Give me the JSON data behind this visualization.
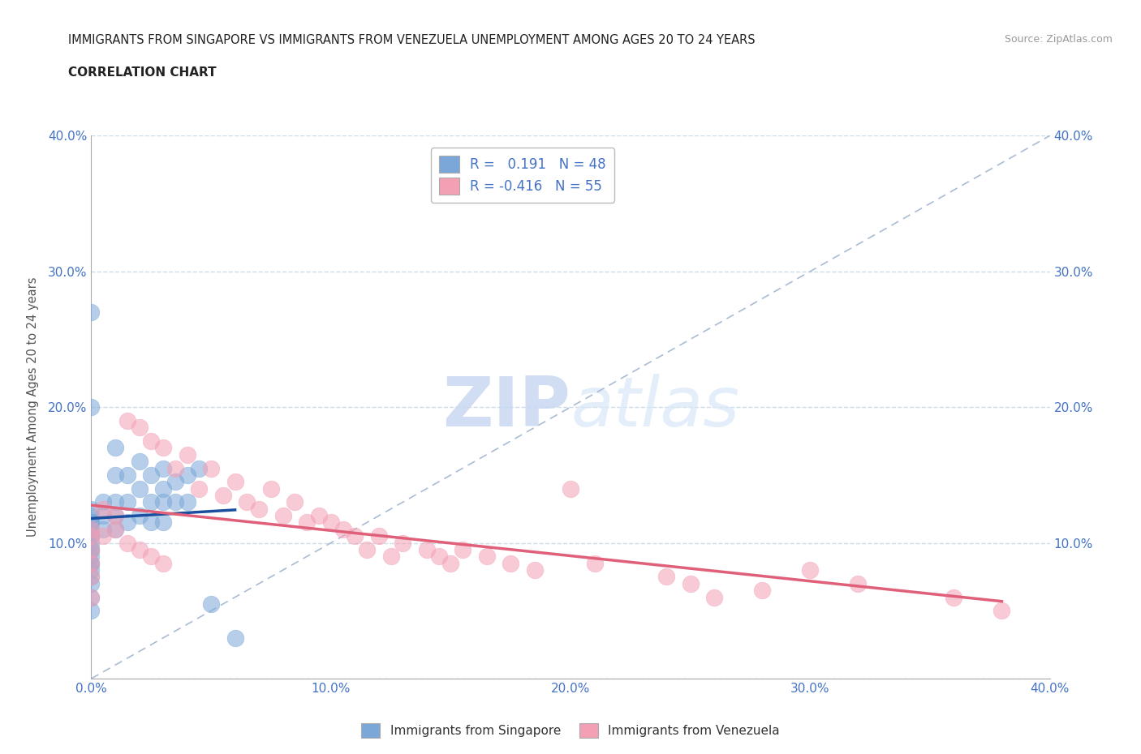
{
  "title_line1": "IMMIGRANTS FROM SINGAPORE VS IMMIGRANTS FROM VENEZUELA UNEMPLOYMENT AMONG AGES 20 TO 24 YEARS",
  "title_line2": "CORRELATION CHART",
  "source_text": "Source: ZipAtlas.com",
  "ylabel": "Unemployment Among Ages 20 to 24 years",
  "xlim": [
    0.0,
    0.4
  ],
  "ylim": [
    0.0,
    0.4
  ],
  "xtick_vals": [
    0.0,
    0.1,
    0.2,
    0.3,
    0.4
  ],
  "xtick_labels": [
    "0.0%",
    "10.0%",
    "20.0%",
    "30.0%",
    "40.0%"
  ],
  "ytick_vals": [
    0.0,
    0.1,
    0.2,
    0.3,
    0.4
  ],
  "ytick_labels": [
    "",
    "10.0%",
    "20.0%",
    "30.0%",
    "40.0%"
  ],
  "right_ytick_vals": [
    0.1,
    0.2,
    0.3,
    0.4
  ],
  "right_ytick_labels": [
    "10.0%",
    "20.0%",
    "30.0%",
    "40.0%"
  ],
  "singapore_color": "#7BA7D8",
  "singapore_edge": "#7BA7D8",
  "venezuela_color": "#F4A0B4",
  "venezuela_edge": "#F4A0B4",
  "singapore_line_color": "#1A4FA0",
  "venezuela_line_color": "#E0607A",
  "diag_color": "#AABBD4",
  "grid_color": "#CCDDE8",
  "singapore_R": 0.191,
  "singapore_N": 48,
  "venezuela_R": -0.416,
  "venezuela_N": 55,
  "legend_label_singapore": "Immigrants from Singapore",
  "legend_label_venezuela": "Immigrants from Venezuela",
  "watermark_zip": "ZIP",
  "watermark_atlas": "atlas",
  "tick_color": "#4472C4",
  "singapore_x": [
    0.0,
    0.0,
    0.0,
    0.0,
    0.0,
    0.0,
    0.0,
    0.0,
    0.0,
    0.0,
    0.0,
    0.0,
    0.0,
    0.0,
    0.0,
    0.0,
    0.0,
    0.0,
    0.0,
    0.0,
    0.005,
    0.005,
    0.005,
    0.01,
    0.01,
    0.01,
    0.01,
    0.01,
    0.015,
    0.015,
    0.015,
    0.02,
    0.02,
    0.02,
    0.025,
    0.025,
    0.025,
    0.03,
    0.03,
    0.03,
    0.03,
    0.035,
    0.035,
    0.04,
    0.04,
    0.045,
    0.05,
    0.06
  ],
  "singapore_y": [
    0.11,
    0.115,
    0.12,
    0.125,
    0.105,
    0.1,
    0.095,
    0.09,
    0.085,
    0.08,
    0.07,
    0.06,
    0.05,
    0.27,
    0.2,
    0.115,
    0.105,
    0.095,
    0.085,
    0.075,
    0.13,
    0.12,
    0.11,
    0.17,
    0.15,
    0.13,
    0.12,
    0.11,
    0.15,
    0.13,
    0.115,
    0.16,
    0.14,
    0.12,
    0.15,
    0.13,
    0.115,
    0.155,
    0.14,
    0.13,
    0.115,
    0.145,
    0.13,
    0.15,
    0.13,
    0.155,
    0.055,
    0.03
  ],
  "venezuela_x": [
    0.0,
    0.0,
    0.0,
    0.0,
    0.0,
    0.0,
    0.005,
    0.005,
    0.01,
    0.01,
    0.015,
    0.015,
    0.02,
    0.02,
    0.025,
    0.025,
    0.03,
    0.03,
    0.035,
    0.04,
    0.045,
    0.05,
    0.055,
    0.06,
    0.065,
    0.07,
    0.075,
    0.08,
    0.085,
    0.09,
    0.095,
    0.1,
    0.105,
    0.11,
    0.115,
    0.12,
    0.125,
    0.13,
    0.14,
    0.145,
    0.15,
    0.155,
    0.165,
    0.175,
    0.185,
    0.2,
    0.21,
    0.24,
    0.25,
    0.26,
    0.28,
    0.3,
    0.32,
    0.36,
    0.38
  ],
  "venezuela_y": [
    0.11,
    0.105,
    0.095,
    0.085,
    0.075,
    0.06,
    0.125,
    0.105,
    0.12,
    0.11,
    0.19,
    0.1,
    0.185,
    0.095,
    0.175,
    0.09,
    0.17,
    0.085,
    0.155,
    0.165,
    0.14,
    0.155,
    0.135,
    0.145,
    0.13,
    0.125,
    0.14,
    0.12,
    0.13,
    0.115,
    0.12,
    0.115,
    0.11,
    0.105,
    0.095,
    0.105,
    0.09,
    0.1,
    0.095,
    0.09,
    0.085,
    0.095,
    0.09,
    0.085,
    0.08,
    0.14,
    0.085,
    0.075,
    0.07,
    0.06,
    0.065,
    0.08,
    0.07,
    0.06,
    0.05
  ]
}
